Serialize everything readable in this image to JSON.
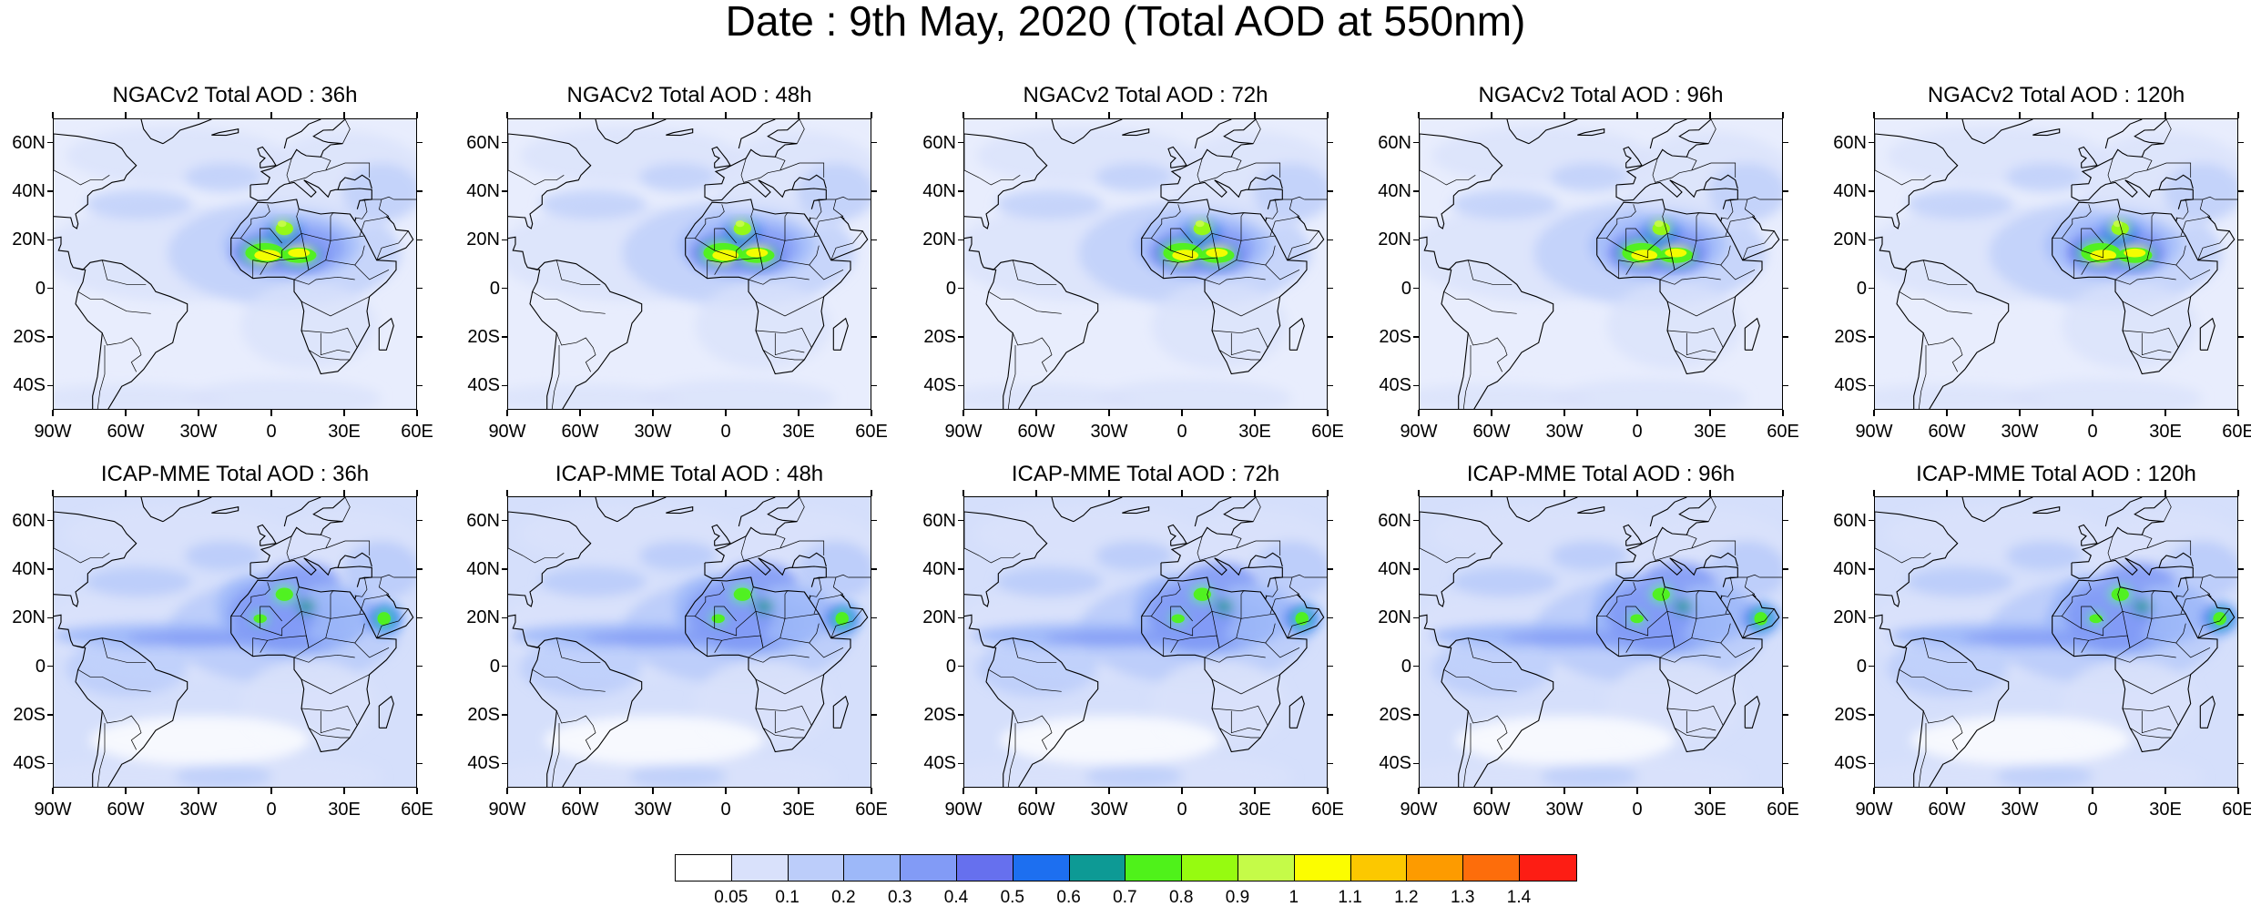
{
  "title": "Date : 9th May, 2020 (Total AOD at 550nm)",
  "rows": [
    {
      "model": "NGACv2",
      "panels": [
        {
          "title": "NGACv2 Total AOD : 36h",
          "lead_hours": 36
        },
        {
          "title": "NGACv2 Total AOD : 48h",
          "lead_hours": 48
        },
        {
          "title": "NGACv2 Total AOD : 72h",
          "lead_hours": 72
        },
        {
          "title": "NGACv2 Total AOD : 96h",
          "lead_hours": 96
        },
        {
          "title": "NGACv2 Total AOD : 120h",
          "lead_hours": 120
        }
      ]
    },
    {
      "model": "ICAP-MME",
      "panels": [
        {
          "title": "ICAP-MME Total AOD : 36h",
          "lead_hours": 36
        },
        {
          "title": "ICAP-MME Total AOD : 48h",
          "lead_hours": 48
        },
        {
          "title": "ICAP-MME Total AOD : 72h",
          "lead_hours": 72
        },
        {
          "title": "ICAP-MME Total AOD : 96h",
          "lead_hours": 96
        },
        {
          "title": "ICAP-MME Total AOD : 120h",
          "lead_hours": 120
        }
      ]
    }
  ],
  "map": {
    "lat_range": [
      -50,
      70
    ],
    "lon_range": [
      -90,
      60
    ],
    "lat_labels": [
      "60N",
      "40N",
      "20N",
      "0",
      "20S",
      "40S"
    ],
    "lat_values": [
      60,
      40,
      20,
      0,
      -20,
      -40
    ],
    "lon_labels": [
      "90W",
      "60W",
      "30W",
      "0",
      "30E",
      "60E"
    ],
    "lon_values": [
      -90,
      -60,
      -30,
      0,
      30,
      60
    ]
  },
  "colorbar": {
    "colors": [
      "#ffffff",
      "#d9e1fb",
      "#bccdfa",
      "#9db8f9",
      "#829bf6",
      "#6670ee",
      "#1d6ff0",
      "#0d9a95",
      "#4ff21a",
      "#96fb10",
      "#c5fb48",
      "#fcfd00",
      "#fcc800",
      "#fd9b00",
      "#fd6d0b",
      "#fd1d14"
    ],
    "labels": [
      "0.05",
      "0.1",
      "0.2",
      "0.3",
      "0.4",
      "0.5",
      "0.6",
      "0.7",
      "0.8",
      "0.9",
      "1",
      "1.1",
      "1.2",
      "1.3",
      "1.4"
    ]
  }
}
